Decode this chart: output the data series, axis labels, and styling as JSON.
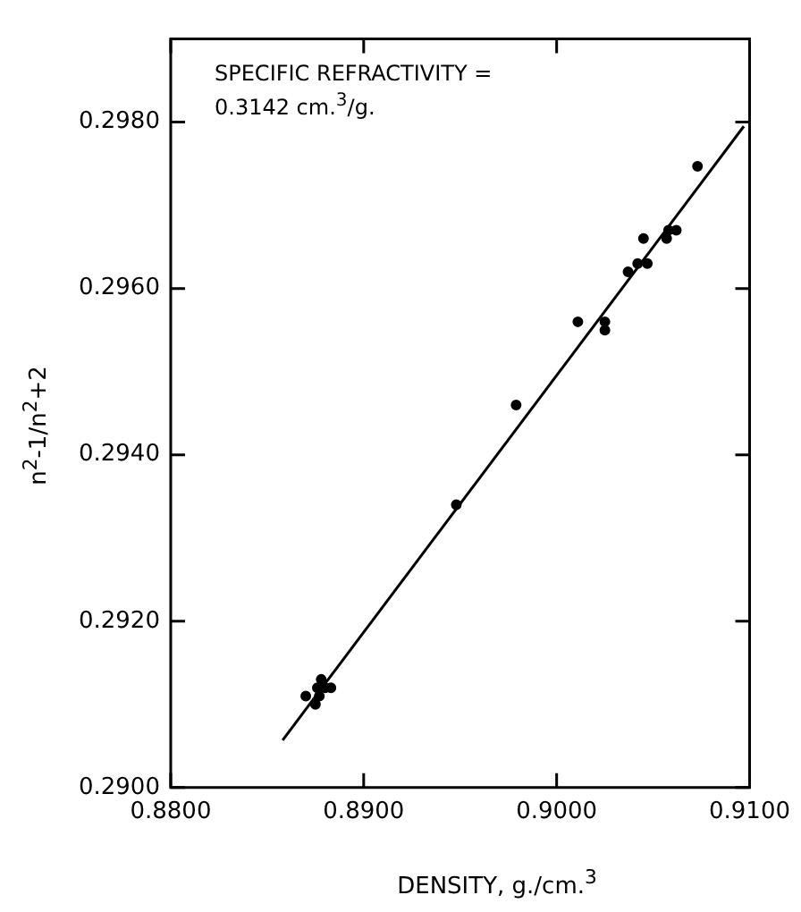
{
  "chart_data": {
    "type": "scatter",
    "xlabel": "DENSITY, g./cm.$^{3}$",
    "ylabel": "n$^{2}$-1/n$^{2}$+2",
    "annotations": [
      "SPECIFIC REFRACTIVITY =",
      "0.3142 cm.$^{3}$/g."
    ],
    "xlim": [
      0.88,
      0.91
    ],
    "ylim": [
      0.29,
      0.299
    ],
    "xticks": [
      {
        "value": 0.88,
        "label": "0.8800"
      },
      {
        "value": 0.89,
        "label": "0.8900"
      },
      {
        "value": 0.9,
        "label": "0.9000"
      },
      {
        "value": 0.91,
        "label": "0.9100"
      }
    ],
    "yticks": [
      {
        "value": 0.29,
        "label": "0.2900"
      },
      {
        "value": 0.292,
        "label": "0.2920"
      },
      {
        "value": 0.294,
        "label": "0.2940"
      },
      {
        "value": 0.296,
        "label": "0.2960"
      },
      {
        "value": 0.298,
        "label": "0.2980"
      }
    ],
    "grid": false,
    "marker": "circle",
    "series": [
      {
        "color": "#000000",
        "x": [
          0.9073,
          0.9058,
          0.9062,
          0.9057,
          0.9045,
          0.9042,
          0.9047,
          0.9037,
          0.9011,
          0.9025,
          0.9025,
          0.8979,
          0.8948,
          0.887,
          0.8876,
          0.8878,
          0.888,
          0.8883,
          0.8875,
          0.8877
        ],
        "values": [
          0.29747,
          0.2967,
          0.2967,
          0.2966,
          0.2966,
          0.2963,
          0.2963,
          0.2962,
          0.2956,
          0.2956,
          0.2955,
          0.2946,
          0.2934,
          0.2911,
          0.2912,
          0.2913,
          0.2912,
          0.2912,
          0.291,
          0.2911
        ]
      },
      {
        "type": "line",
        "color": "#000000",
        "marker": "none",
        "x": [
          0.8858,
          0.9097
        ],
        "values": [
          0.29057,
          0.29795
        ]
      }
    ]
  }
}
